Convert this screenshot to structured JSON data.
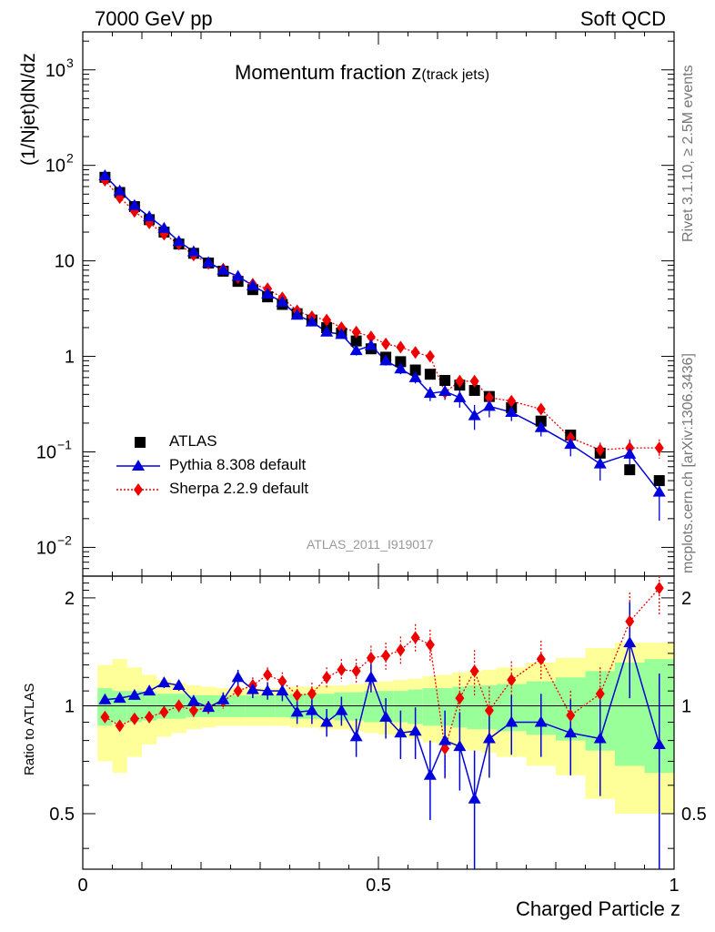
{
  "header": {
    "left": "7000 GeV pp",
    "right": "Soft QCD"
  },
  "side_text": {
    "rivet": "Rivet 3.1.10, ≥ 2.5M events",
    "source": "mcplots.cern.ch [arXiv:1306.3436]"
  },
  "chart_data": {
    "type": "scatter",
    "title_main": "Momentum fraction z",
    "title_sub": "(track jets)",
    "watermark": "ATLAS_2011_I919017",
    "xlabel": "Charged Particle z",
    "ylabel_top": "(1/Njet)dN/dz",
    "ylabel_bottom": "Ratio to ATLAS",
    "xlim": [
      0,
      1
    ],
    "ylim_top": [
      0.005,
      2500
    ],
    "ylim_bottom": [
      0.35,
      2.3
    ],
    "yscale_top": "log",
    "yscale_bottom": "log",
    "x_ticks": [
      {
        "v": 0,
        "label": "0"
      },
      {
        "v": 0.5,
        "label": "0.5"
      },
      {
        "v": 1,
        "label": "1"
      }
    ],
    "top_ticks": [
      {
        "v": 1000,
        "base": "10",
        "exp": "3"
      },
      {
        "v": 100,
        "base": "10",
        "exp": "2"
      },
      {
        "v": 10,
        "base": "10",
        "exp": ""
      },
      {
        "v": 1,
        "base": "1",
        "exp": ""
      },
      {
        "v": 0.1,
        "base": "10",
        "exp": "−1"
      },
      {
        "v": 0.01,
        "base": "10",
        "exp": "−2"
      }
    ],
    "ratio_ticks": [
      {
        "v": 0.5,
        "label": "0.5"
      },
      {
        "v": 1,
        "label": "1"
      },
      {
        "v": 2,
        "label": "2"
      }
    ],
    "legend": [
      {
        "label": "ATLAS",
        "marker": "square",
        "color": "#000000"
      },
      {
        "label": "Pythia 8.308 default",
        "marker": "triangle",
        "color": "#0000dd"
      },
      {
        "label": "Sherpa 2.2.9 default",
        "marker": "diamond",
        "color": "#ee0000"
      }
    ],
    "legend_position": "bottom-left",
    "x": [
      0.0375,
      0.0625,
      0.0875,
      0.1125,
      0.1375,
      0.1625,
      0.1875,
      0.2125,
      0.2375,
      0.2625,
      0.2875,
      0.3125,
      0.3375,
      0.3625,
      0.3875,
      0.4125,
      0.4375,
      0.4625,
      0.4875,
      0.5125,
      0.5375,
      0.5625,
      0.5875,
      0.6125,
      0.6375,
      0.6625,
      0.6875,
      0.725,
      0.775,
      0.825,
      0.875,
      0.925,
      0.975
    ],
    "bin_edges": [
      0.025,
      0.05,
      0.075,
      0.1,
      0.125,
      0.15,
      0.175,
      0.2,
      0.225,
      0.25,
      0.275,
      0.3,
      0.325,
      0.35,
      0.375,
      0.4,
      0.425,
      0.45,
      0.475,
      0.5,
      0.525,
      0.55,
      0.575,
      0.6,
      0.625,
      0.65,
      0.675,
      0.7,
      0.75,
      0.8,
      0.85,
      0.9,
      0.95,
      1.0
    ],
    "series": [
      {
        "name": "ATLAS",
        "color": "#000000",
        "values": [
          75,
          52,
          37,
          27,
          20,
          15,
          12,
          9.5,
          7.8,
          6.1,
          5.0,
          4.2,
          3.5,
          2.8,
          2.4,
          2.0,
          1.75,
          1.45,
          1.2,
          0.98,
          0.88,
          0.72,
          0.65,
          0.56,
          0.5,
          0.44,
          0.38,
          0.29,
          0.21,
          0.15,
          0.097,
          0.065,
          0.05
        ]
      },
      {
        "name": "Pythia 8.308 default",
        "color": "#0000dd",
        "values": [
          78,
          54,
          38,
          29,
          22,
          16,
          12.5,
          9.6,
          8.0,
          6.9,
          5.5,
          4.5,
          3.7,
          2.7,
          2.3,
          1.8,
          1.7,
          1.15,
          1.3,
          0.9,
          0.74,
          0.6,
          0.41,
          0.43,
          0.37,
          0.24,
          0.3,
          0.26,
          0.18,
          0.12,
          0.075,
          0.095,
          0.038
        ],
        "err": [
          3,
          2,
          1.5,
          1.2,
          0.9,
          0.7,
          0.6,
          0.4,
          0.4,
          0.4,
          0.3,
          0.3,
          0.25,
          0.2,
          0.18,
          0.15,
          0.15,
          0.13,
          0.13,
          0.1,
          0.09,
          0.08,
          0.07,
          0.08,
          0.08,
          0.07,
          0.07,
          0.05,
          0.035,
          0.03,
          0.025,
          0.035,
          0.019
        ]
      },
      {
        "name": "Sherpa 2.2.9 default",
        "color": "#ee0000",
        "values": [
          70,
          46,
          33,
          25,
          19,
          15,
          11.5,
          9.4,
          8.2,
          6.7,
          5.7,
          5.1,
          4.1,
          3.0,
          2.6,
          2.4,
          2.0,
          1.8,
          1.6,
          1.35,
          1.25,
          1.1,
          1.0,
          0.42,
          0.55,
          0.55,
          0.37,
          0.34,
          0.28,
          0.14,
          0.105,
          0.11,
          0.11
        ],
        "err": [
          2,
          1.5,
          1,
          0.8,
          0.6,
          0.5,
          0.4,
          0.3,
          0.3,
          0.3,
          0.25,
          0.2,
          0.2,
          0.18,
          0.15,
          0.15,
          0.13,
          0.12,
          0.12,
          0.1,
          0.1,
          0.1,
          0.09,
          0.07,
          0.07,
          0.07,
          0.05,
          0.04,
          0.035,
          0.025,
          0.02,
          0.025,
          0.025
        ]
      }
    ],
    "ratio": {
      "pythia": [
        1.04,
        1.05,
        1.07,
        1.1,
        1.16,
        1.14,
        1.03,
        0.99,
        1.04,
        1.2,
        1.11,
        1.1,
        1.1,
        0.96,
        0.97,
        0.9,
        0.97,
        0.82,
        1.2,
        0.93,
        0.84,
        0.85,
        0.64,
        0.8,
        0.77,
        0.55,
        0.81,
        0.9,
        0.9,
        0.84,
        0.81,
        1.5,
        0.78
      ],
      "pythia_err": [
        0.03,
        0.03,
        0.03,
        0.03,
        0.04,
        0.04,
        0.04,
        0.04,
        0.05,
        0.06,
        0.06,
        0.06,
        0.07,
        0.07,
        0.08,
        0.08,
        0.09,
        0.1,
        0.11,
        0.12,
        0.13,
        0.14,
        0.16,
        0.17,
        0.19,
        0.2,
        0.18,
        0.17,
        0.18,
        0.2,
        0.25,
        0.45,
        0.45
      ],
      "sherpa": [
        0.93,
        0.88,
        0.92,
        0.93,
        0.96,
        1.0,
        0.97,
        0.99,
        1.03,
        1.1,
        1.14,
        1.22,
        1.17,
        1.07,
        1.08,
        1.2,
        1.26,
        1.25,
        1.36,
        1.38,
        1.43,
        1.55,
        1.48,
        0.76,
        1.05,
        1.25,
        0.97,
        1.18,
        1.35,
        0.94,
        1.08,
        1.72,
        2.13
      ],
      "sherpa_err": [
        0.03,
        0.03,
        0.03,
        0.03,
        0.03,
        0.04,
        0.04,
        0.04,
        0.05,
        0.05,
        0.06,
        0.06,
        0.07,
        0.07,
        0.08,
        0.08,
        0.09,
        0.1,
        0.11,
        0.12,
        0.13,
        0.14,
        0.15,
        0.14,
        0.16,
        0.18,
        0.16,
        0.15,
        0.17,
        0.16,
        0.2,
        0.35,
        0.35
      ],
      "band_inner": [
        0.12,
        0.1,
        0.1,
        0.09,
        0.08,
        0.08,
        0.07,
        0.07,
        0.07,
        0.07,
        0.07,
        0.07,
        0.07,
        0.08,
        0.08,
        0.08,
        0.09,
        0.09,
        0.1,
        0.1,
        0.1,
        0.11,
        0.12,
        0.12,
        0.13,
        0.14,
        0.14,
        0.15,
        0.17,
        0.2,
        0.25,
        0.32,
        0.35
      ],
      "band_outer": [
        0.3,
        0.35,
        0.28,
        0.22,
        0.18,
        0.16,
        0.14,
        0.13,
        0.12,
        0.12,
        0.12,
        0.12,
        0.12,
        0.13,
        0.13,
        0.14,
        0.14,
        0.15,
        0.16,
        0.17,
        0.18,
        0.19,
        0.21,
        0.22,
        0.24,
        0.25,
        0.26,
        0.28,
        0.32,
        0.36,
        0.45,
        0.5,
        0.5
      ]
    },
    "colors": {
      "band_inner": "#99ff99",
      "band_outer": "#ffff99"
    }
  }
}
